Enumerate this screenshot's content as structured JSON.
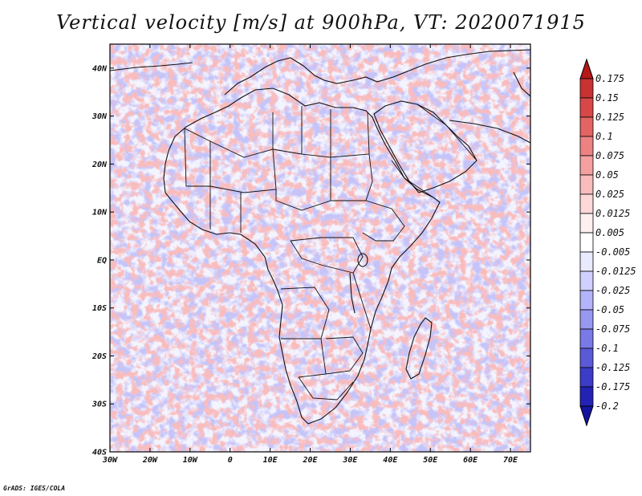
{
  "title": "Vertical velocity [m/s] at 900hPa, VT: 2020071915",
  "credit": "GrADS: IGES/COLA",
  "map": {
    "lon_range": [
      -30,
      75
    ],
    "lat_range": [
      -40,
      45
    ],
    "x_ticks": [
      "30W",
      "20W",
      "10W",
      "0",
      "10E",
      "20E",
      "30E",
      "40E",
      "50E",
      "60E",
      "70E"
    ],
    "y_ticks": [
      "40N",
      "30N",
      "20N",
      "10N",
      "EQ",
      "10S",
      "20S",
      "30S",
      "40S"
    ],
    "x_tick_values": [
      -30,
      -20,
      -10,
      0,
      10,
      20,
      30,
      40,
      50,
      60,
      70
    ],
    "y_tick_values": [
      40,
      30,
      20,
      10,
      0,
      -10,
      -20,
      -30,
      -40
    ]
  },
  "colorbar": {
    "labels": [
      "0.175",
      "0.15",
      "0.125",
      "0.1",
      "0.075",
      "0.05",
      "0.025",
      "0.0125",
      "0.005",
      "-0.005",
      "-0.0125",
      "-0.025",
      "-0.05",
      "-0.075",
      "-0.1",
      "-0.125",
      "-0.175",
      "-0.2"
    ],
    "colors": [
      "#b41818",
      "#c83232",
      "#d84848",
      "#e46464",
      "#ec8282",
      "#f4a0a0",
      "#f8bcbc",
      "#fcd8d8",
      "#fff0f0",
      "#ffffff",
      "#eaeaff",
      "#d0d0ff",
      "#b4b4fa",
      "#9898f0",
      "#7a7ae6",
      "#5a5ad8",
      "#3c3cc8",
      "#2222b4",
      "#1414a0"
    ]
  }
}
